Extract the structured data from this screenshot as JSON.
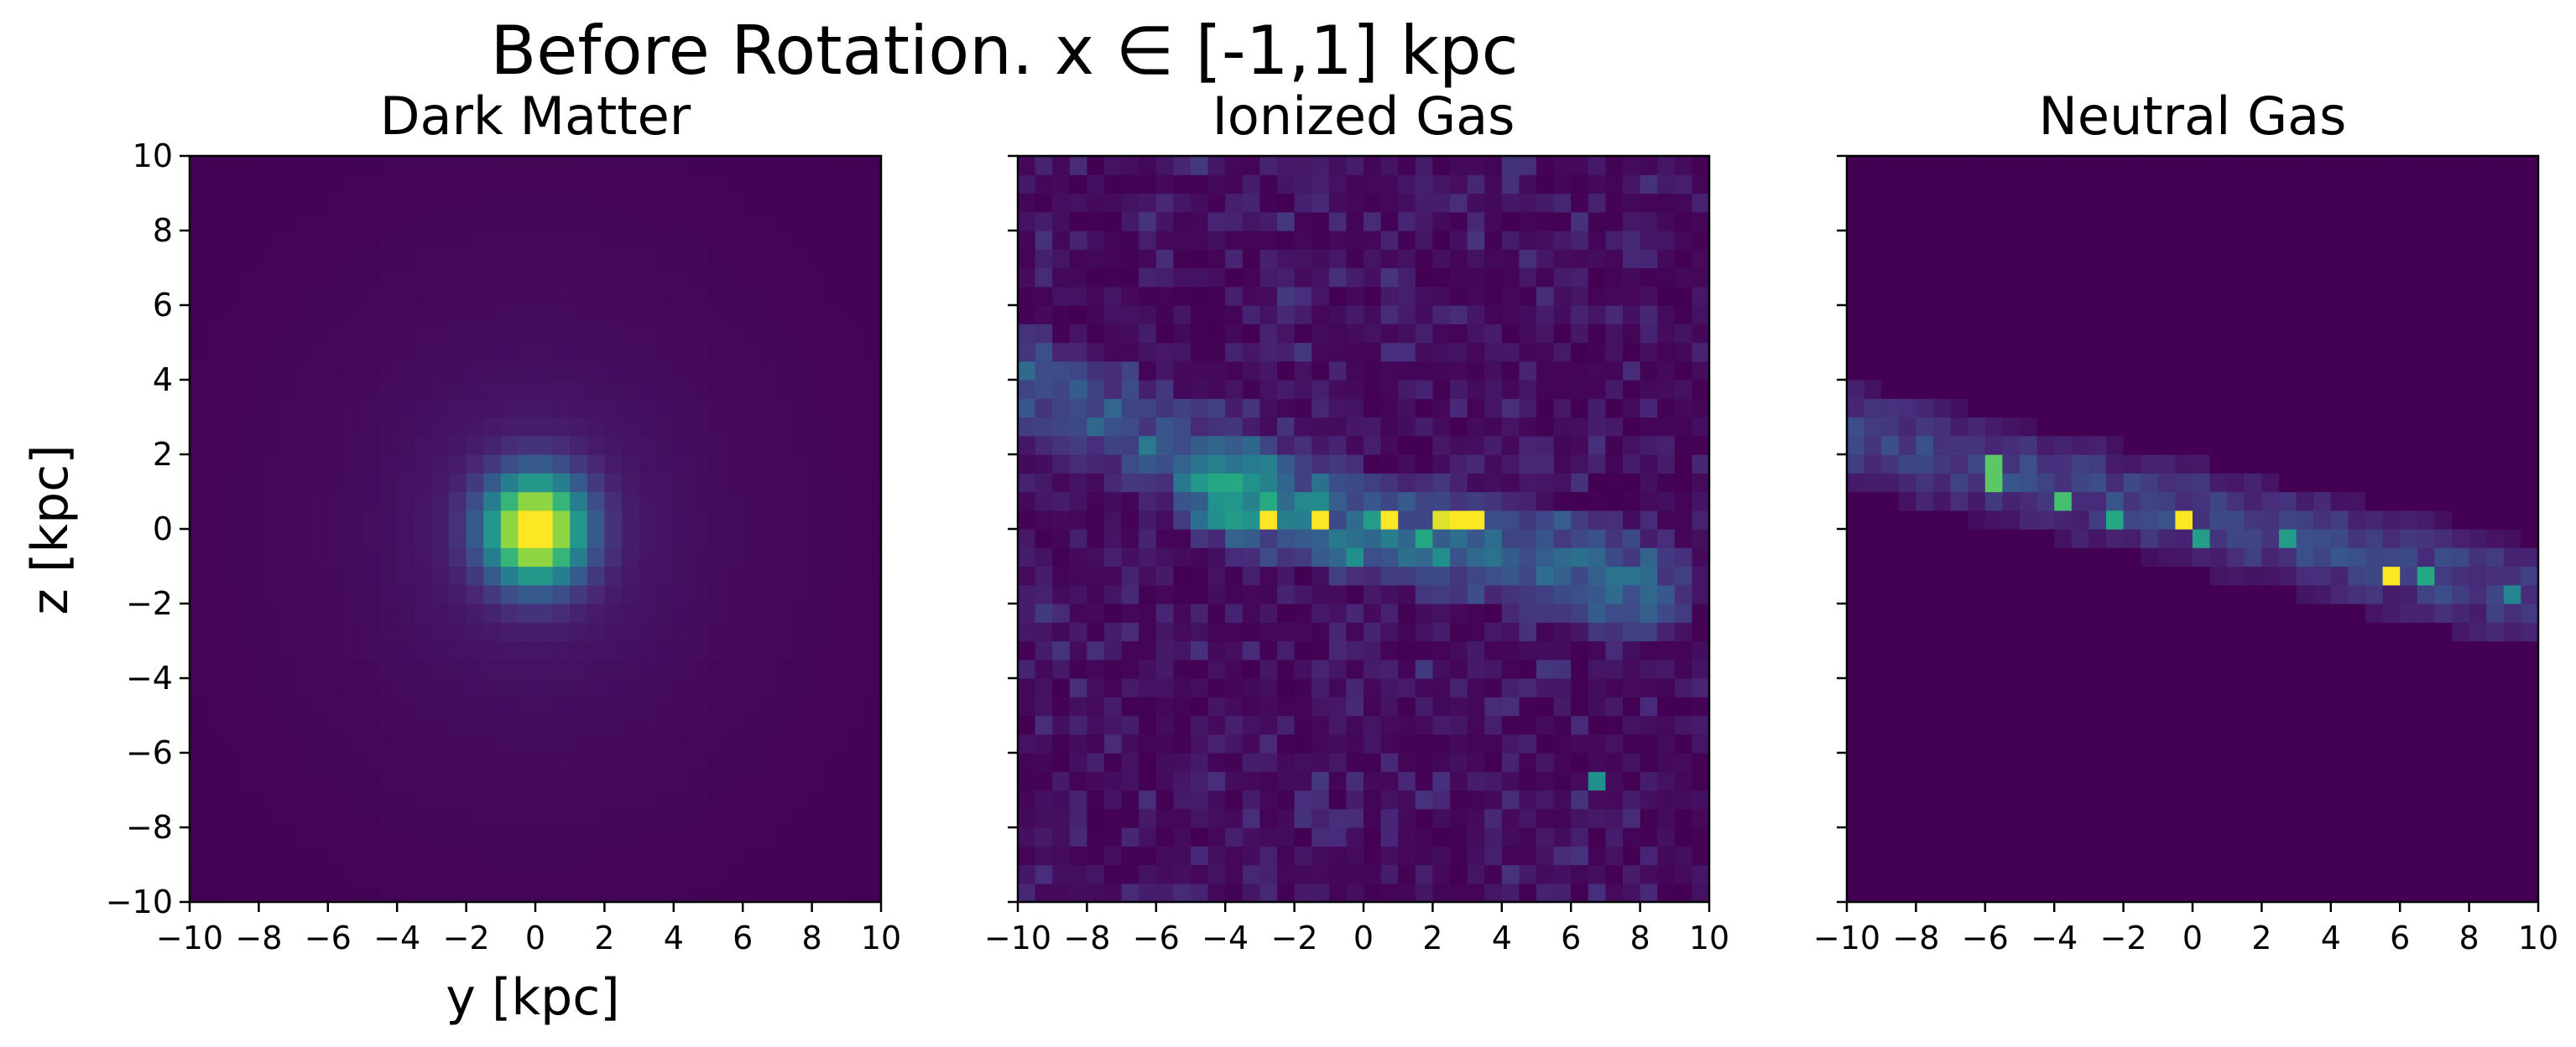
{
  "figure": {
    "suptitle": "Before Rotation. x ∈ [-1,1] kpc",
    "xlabel": "y [kpc]",
    "ylabel": "z [kpc]",
    "colormap": "viridis"
  },
  "chart_data": [
    {
      "type": "heatmap",
      "title": "Dark Matter",
      "xlabel": "y [kpc]",
      "ylabel": "z [kpc]",
      "xlim": [
        -10,
        10
      ],
      "ylim": [
        -10,
        10
      ],
      "xticks": [
        "−10",
        "−8",
        "−6",
        "−4",
        "−2",
        "0",
        "2",
        "4",
        "6",
        "8",
        "10"
      ],
      "yticks": [
        "−10",
        "−8",
        "−6",
        "−4",
        "−2",
        "0",
        "2",
        "4",
        "6",
        "8",
        "10"
      ],
      "bins": 40,
      "grid": false,
      "features": [
        {
          "kind": "central-peak",
          "center": [
            0.0,
            0.0
          ],
          "radius": 2.2,
          "peak": 1.0
        },
        {
          "kind": "extended-halo",
          "center": [
            0.0,
            0.0
          ],
          "radius": 8.0,
          "level": 0.12
        }
      ]
    },
    {
      "type": "heatmap",
      "title": "Ionized Gas",
      "xlim": [
        -10,
        10
      ],
      "ylim": [
        -10,
        10
      ],
      "xticks": [
        "−10",
        "−8",
        "−6",
        "−4",
        "−2",
        "0",
        "2",
        "4",
        "6",
        "8",
        "10"
      ],
      "bins": 40,
      "grid": false,
      "features": [
        {
          "kind": "bright-pixel",
          "y": -2.9,
          "z": 0.0,
          "value": 1.0
        },
        {
          "kind": "bright-pixel",
          "y": -1.5,
          "z": 0.0,
          "value": 1.0
        },
        {
          "kind": "bright-pixel",
          "y": 0.8,
          "z": 0.0,
          "value": 1.0
        },
        {
          "kind": "bright-pixel",
          "y": 2.6,
          "z": 0.0,
          "value": 1.0
        },
        {
          "kind": "bright-pixel",
          "y": 3.0,
          "z": 0.0,
          "value": 1.0
        },
        {
          "kind": "bright-pixel",
          "y": 2.2,
          "z": 0.0,
          "value": 0.95
        },
        {
          "kind": "bright-pixel",
          "y": 1.5,
          "z": -0.3,
          "value": 0.6
        },
        {
          "kind": "bright-pixel",
          "y": 0.0,
          "z": 0.2,
          "value": 0.55
        },
        {
          "kind": "bright-pixel",
          "y": -0.3,
          "z": -0.6,
          "value": 0.5
        },
        {
          "kind": "bright-pixel",
          "y": 2.3,
          "z": -0.9,
          "value": 0.5
        },
        {
          "kind": "bright-pixel",
          "y": 6.8,
          "z": -7.0,
          "value": 0.5
        },
        {
          "kind": "band",
          "from": [
            -10.0,
            4.0
          ],
          "to": [
            -3.5,
            1.2
          ],
          "width": 1.0,
          "level": 0.22
        },
        {
          "kind": "band",
          "from": [
            -4.0,
            1.0
          ],
          "to": [
            8.0,
            -1.5
          ],
          "width": 1.0,
          "level": 0.28
        },
        {
          "kind": "noise-floor",
          "level": 0.08
        }
      ]
    },
    {
      "type": "heatmap",
      "title": "Neutral Gas",
      "xlim": [
        -10,
        10
      ],
      "ylim": [
        -10,
        10
      ],
      "xticks": [
        "−10",
        "−8",
        "−6",
        "−4",
        "−2",
        "0",
        "2",
        "4",
        "6",
        "8",
        "10"
      ],
      "bins": 40,
      "grid": false,
      "features": [
        {
          "kind": "band",
          "from": [
            -10.0,
            2.5
          ],
          "to": [
            10.0,
            -1.8
          ],
          "width": 0.9,
          "level": 0.2
        },
        {
          "kind": "bright-pixel",
          "y": -0.3,
          "z": 0.0,
          "value": 1.0
        },
        {
          "kind": "bright-pixel",
          "y": 5.7,
          "z": -1.2,
          "value": 1.0
        },
        {
          "kind": "bright-pixel",
          "y": -5.6,
          "z": 1.6,
          "value": 0.75
        },
        {
          "kind": "bright-pixel",
          "y": -5.9,
          "z": 1.2,
          "value": 0.75
        },
        {
          "kind": "bright-pixel",
          "y": -3.8,
          "z": 0.8,
          "value": 0.7
        },
        {
          "kind": "bright-pixel",
          "y": -2.5,
          "z": 0.4,
          "value": 0.6
        },
        {
          "kind": "bright-pixel",
          "y": 0.3,
          "z": -0.2,
          "value": 0.55
        },
        {
          "kind": "bright-pixel",
          "y": 2.5,
          "z": -0.4,
          "value": 0.55
        },
        {
          "kind": "bright-pixel",
          "y": 6.8,
          "z": -1.3,
          "value": 0.6
        },
        {
          "kind": "bright-pixel",
          "y": 9.0,
          "z": -1.6,
          "value": 0.45
        }
      ]
    }
  ]
}
